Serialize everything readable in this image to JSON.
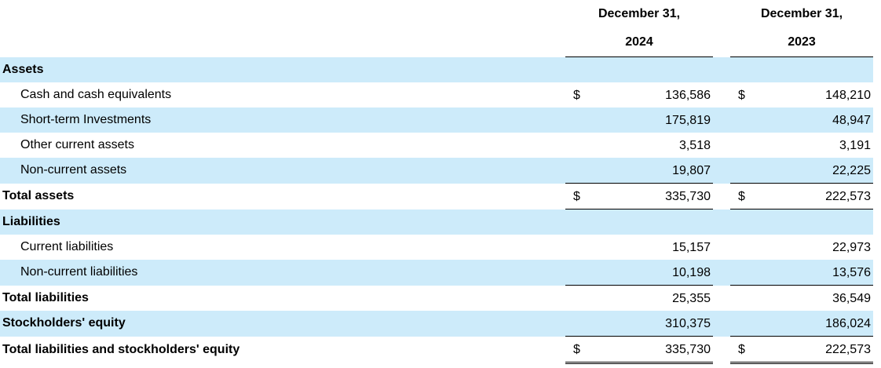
{
  "header": {
    "columns": [
      {
        "line1": "December 31,",
        "line2": "2024"
      },
      {
        "line1": "December 31,",
        "line2": "2023"
      }
    ]
  },
  "rows": [
    {
      "label": "Assets"
    },
    {
      "label": "Cash and cash equivalents",
      "currency": [
        "$",
        "$"
      ],
      "values": [
        "136,586",
        "148,210"
      ]
    },
    {
      "label": "Short-term Investments",
      "values": [
        "175,819",
        "48,947"
      ]
    },
    {
      "label": "Other current assets",
      "values": [
        "3,518",
        "3,191"
      ]
    },
    {
      "label": "Non-current assets",
      "values": [
        "19,807",
        "22,225"
      ]
    },
    {
      "label": "Total assets",
      "currency": [
        "$",
        "$"
      ],
      "values": [
        "335,730",
        "222,573"
      ]
    },
    {
      "label": "Liabilities"
    },
    {
      "label": "Current liabilities",
      "values": [
        "15,157",
        "22,973"
      ]
    },
    {
      "label": "Non-current liabilities",
      "values": [
        "10,198",
        "13,576"
      ]
    },
    {
      "label": "Total liabilities",
      "values": [
        "25,355",
        "36,549"
      ]
    },
    {
      "label": "Stockholders' equity",
      "values": [
        "310,375",
        "186,024"
      ]
    },
    {
      "label": "Total liabilities and stockholders' equity",
      "currency": [
        "$",
        "$"
      ],
      "values": [
        "335,730",
        "222,573"
      ]
    }
  ]
}
